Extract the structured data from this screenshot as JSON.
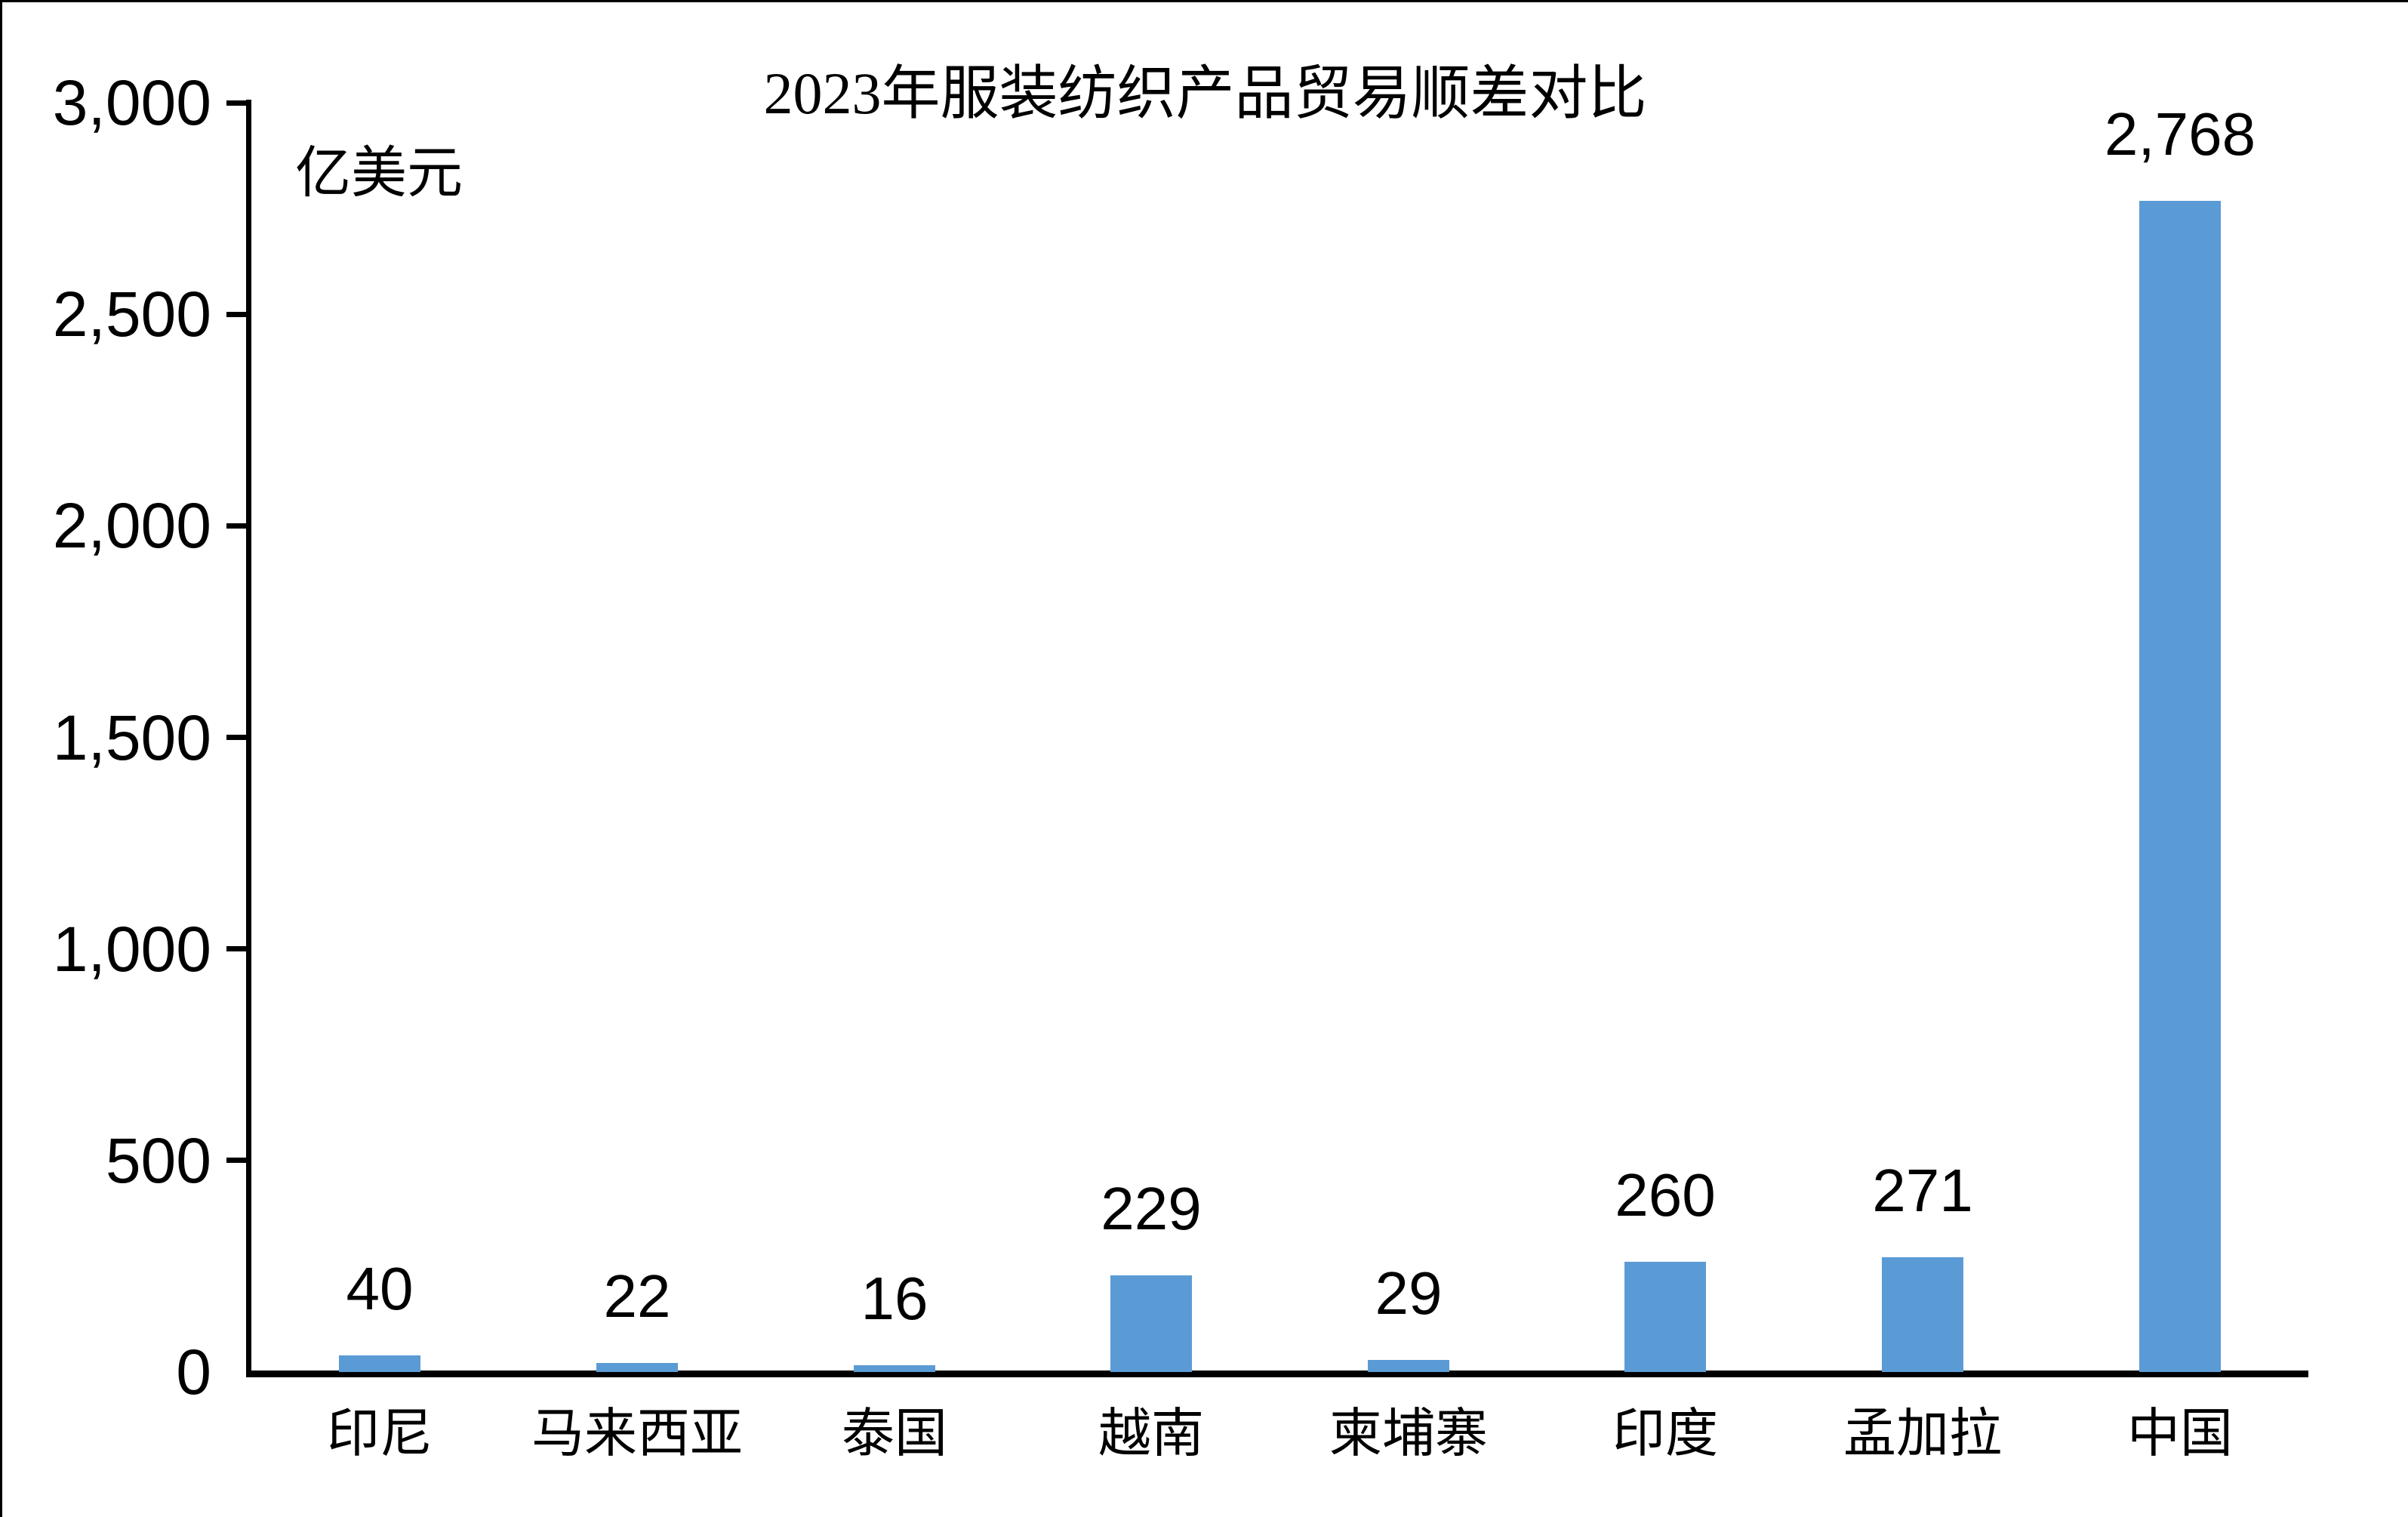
{
  "title": "2023年服装纺织产品贸易顺差对比",
  "unit_label": "亿美元",
  "chart_data": {
    "type": "bar",
    "title": "2023年服装纺织产品贸易顺差对比",
    "ylabel": "亿美元",
    "xlabel": "",
    "categories": [
      "印尼",
      "马来西亚",
      "泰国",
      "越南",
      "柬埔寨",
      "印度",
      "孟加拉",
      "中国"
    ],
    "values": [
      40,
      22,
      16,
      229,
      29,
      260,
      271,
      2768
    ],
    "value_labels": [
      "40",
      "22",
      "16",
      "229",
      "29",
      "260",
      "271",
      "2,768"
    ],
    "y_tick_values": [
      0,
      500,
      1000,
      1500,
      2000,
      2500,
      3000
    ],
    "y_tick_labels": [
      "0",
      "500",
      "1,000",
      "1,500",
      "2,000",
      "2,500",
      "3,000"
    ],
    "ylim": [
      0,
      3000
    ],
    "bar_color": "#5B9BD5",
    "axis_color": "#000000",
    "grid": false,
    "legend_position": "none"
  }
}
